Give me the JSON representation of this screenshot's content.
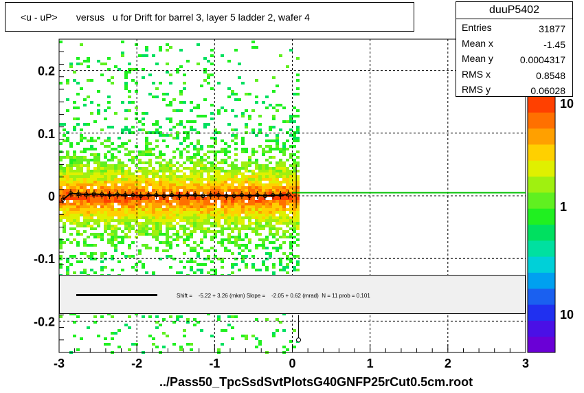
{
  "title": "<u - uP>       versus   u for Drift for barrel 3, layer 5 ladder 2, wafer 4",
  "stats": {
    "name": "duuP5402",
    "rows": [
      {
        "k": "Entries",
        "v": "31877"
      },
      {
        "k": "Mean x",
        "v": "-1.45"
      },
      {
        "k": "Mean y",
        "v": "0.0004317"
      },
      {
        "k": "RMS x",
        "v": "0.8548"
      },
      {
        "k": "RMS y",
        "v": "0.06028"
      }
    ]
  },
  "fit_text": "Shift =    -5.22 + 3.26 (mkm) Slope =    -2.05 + 0.62 (mrad)  N = 11 prob = 0.101",
  "xtitle": "../Pass50_TpcSsdSvtPlotsG40GNFP25rCut0.5cm.root",
  "colors": {
    "palette": [
      "#6a00d6",
      "#4a10e6",
      "#2030f0",
      "#1a60f0",
      "#00a0f0",
      "#00d0d8",
      "#00e0a0",
      "#00e060",
      "#20f020",
      "#60f020",
      "#a0f010",
      "#e0f000",
      "#ffd000",
      "#ffa000",
      "#ff7000",
      "#ff4000"
    ],
    "fit_line": "#00c000"
  },
  "chart_data": {
    "type": "heatmap",
    "xlim": [
      -3,
      3
    ],
    "ylim": [
      -0.25,
      0.25
    ],
    "x_ticks": [
      -3,
      -2,
      -1,
      0,
      1,
      2,
      3
    ],
    "y_ticks": [
      -0.2,
      -0.1,
      0,
      0.1,
      0.2
    ],
    "z_ticks": [
      "10",
      "1",
      "10"
    ],
    "grid": true,
    "fit_line": {
      "x": [
        0,
        3
      ],
      "y": [
        0.005,
        0.005
      ]
    },
    "profile": {
      "x": [
        -2.95,
        -2.85,
        -2.75,
        -2.65,
        -2.55,
        -2.45,
        -2.35,
        -2.25,
        -2.15,
        -2.05,
        -1.95,
        -1.85,
        -1.75,
        -1.65,
        -1.55,
        -1.45,
        -1.35,
        -1.25,
        -1.15,
        -1.05,
        -0.95,
        -0.85,
        -0.75,
        -0.65,
        -0.55,
        -0.45,
        -0.35,
        -0.25,
        -0.15,
        -0.05
      ],
      "y": [
        -0.006,
        0.004,
        0.003,
        0.002,
        0.003,
        0.002,
        0.001,
        0.002,
        0.001,
        0.001,
        0.0,
        0.001,
        0.001,
        0.0,
        0.001,
        0.0,
        0.001,
        0.001,
        0.0,
        0.001,
        0.001,
        0.0,
        0.0,
        0.001,
        0.0,
        0.001,
        0.0,
        0.001,
        0.001,
        0.002
      ]
    },
    "outlier": {
      "x": 0.08,
      "y": -0.23
    }
  }
}
